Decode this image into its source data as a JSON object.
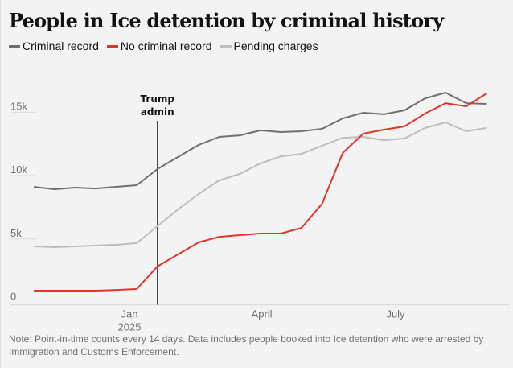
{
  "chart_data": {
    "type": "line",
    "title": "People in Ice detention by criminal history",
    "xlabel": "",
    "ylabel": "",
    "ylim": [
      0,
      17000
    ],
    "grid": true,
    "legend_position": "top-left",
    "y_ticks": [
      {
        "value": 0,
        "label": "0"
      },
      {
        "value": 5000,
        "label": "5k"
      },
      {
        "value": 10000,
        "label": "10k"
      },
      {
        "value": 15000,
        "label": "15k"
      }
    ],
    "x_ticks": [
      {
        "date": "2025-01-01",
        "label": "Jan",
        "sublabel": "2025"
      },
      {
        "date": "2025-04-01",
        "label": "April",
        "sublabel": ""
      },
      {
        "date": "2025-07-01",
        "label": "July",
        "sublabel": ""
      }
    ],
    "x": [
      "2024-10-28",
      "2024-11-11",
      "2024-11-25",
      "2024-12-09",
      "2024-12-23",
      "2025-01-06",
      "2025-01-20",
      "2025-02-03",
      "2025-02-17",
      "2025-03-03",
      "2025-03-17",
      "2025-03-31",
      "2025-04-14",
      "2025-04-28",
      "2025-05-12",
      "2025-05-26",
      "2025-06-09",
      "2025-06-23",
      "2025-07-07",
      "2025-07-21",
      "2025-08-04",
      "2025-08-18",
      "2025-09-01"
    ],
    "series": [
      {
        "name": "Criminal record",
        "color": "#707070",
        "values": [
          9110,
          8920,
          9050,
          8980,
          9110,
          9240,
          10510,
          11460,
          12410,
          13050,
          13170,
          13560,
          13430,
          13490,
          13680,
          14510,
          14950,
          14830,
          15140,
          16090,
          16540,
          15710,
          15650
        ]
      },
      {
        "name": "No criminal record",
        "color": "#e0362a",
        "values": [
          920,
          920,
          920,
          920,
          980,
          1050,
          2830,
          3780,
          4730,
          5170,
          5300,
          5430,
          5430,
          5870,
          7780,
          11780,
          13300,
          13620,
          13870,
          14890,
          15710,
          15460,
          16480
        ]
      },
      {
        "name": "Pending charges",
        "color": "#bdbdbd",
        "values": [
          4410,
          4350,
          4410,
          4480,
          4540,
          4670,
          6000,
          7330,
          8540,
          9620,
          10130,
          10950,
          11520,
          11710,
          12350,
          12980,
          13050,
          12790,
          12920,
          13750,
          14190,
          13490,
          13750
        ]
      }
    ],
    "annotations": [
      {
        "date": "2025-01-20",
        "text_lines": [
          "Trump",
          "admin"
        ]
      }
    ]
  },
  "note": "Note: Point-in-time counts every 14 days. Data includes people booked into Ice detention who were arrested by Immigration and Customs Enforcement."
}
